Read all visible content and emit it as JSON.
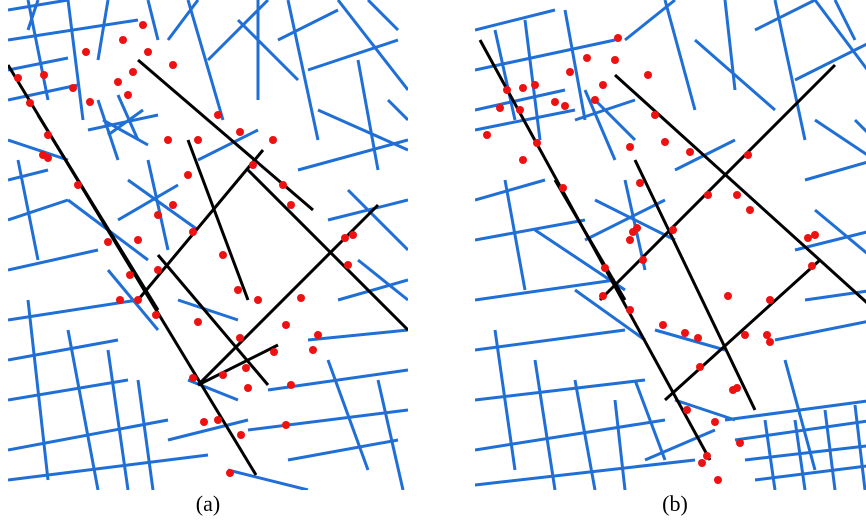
{
  "panels": [
    {
      "id": "a",
      "label": "(a)"
    },
    {
      "id": "b",
      "label": "(b)"
    }
  ],
  "colors": {
    "background_lines": "#1f6fd6",
    "road_lines": "#000000",
    "intersection_points": "#ee1111"
  }
}
